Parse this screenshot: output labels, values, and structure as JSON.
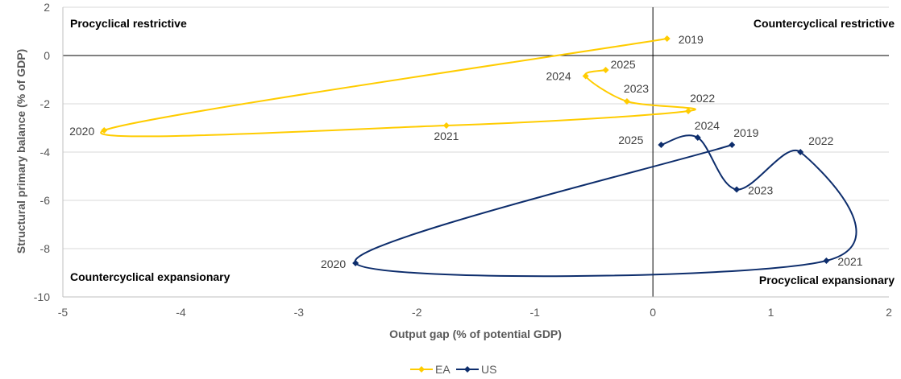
{
  "chart_data": {
    "type": "scatter",
    "title": "",
    "xlabel": "Output gap (% of potential GDP)",
    "ylabel": "Structural primary balance (% of GDP)",
    "xlim": [
      -5,
      2
    ],
    "ylim": [
      -10,
      2
    ],
    "x_ticks": [
      "-5",
      "-4",
      "-3",
      "-2",
      "-1",
      "0",
      "1",
      "2"
    ],
    "y_ticks": [
      "-10",
      "-8",
      "-6",
      "-4",
      "-2",
      "0",
      "2"
    ],
    "grid": true,
    "legend_position": "bottom",
    "quadrants": {
      "top_left": "Procyclical restrictive",
      "top_right": "Countercyclical restrictive",
      "bottom_left": "Countercyclical expansionary",
      "bottom_right": "Procyclical expansionary"
    },
    "series": [
      {
        "name": "EA",
        "color": "#FFCC00",
        "marker": "diamond",
        "points": [
          {
            "label": "2019",
            "x": 0.12,
            "y": 0.7
          },
          {
            "label": "2020",
            "x": -4.65,
            "y": -3.1
          },
          {
            "label": "2021",
            "x": -1.75,
            "y": -2.9
          },
          {
            "label": "2022",
            "x": 0.3,
            "y": -2.3
          },
          {
            "label": "2023",
            "x": -0.22,
            "y": -1.9
          },
          {
            "label": "2024",
            "x": -0.57,
            "y": -0.85
          },
          {
            "label": "2025",
            "x": -0.4,
            "y": -0.6
          }
        ]
      },
      {
        "name": "US",
        "color": "#0D2D6C",
        "marker": "diamond",
        "points": [
          {
            "label": "2019",
            "x": 0.67,
            "y": -3.7
          },
          {
            "label": "2020",
            "x": -2.52,
            "y": -8.6
          },
          {
            "label": "2021",
            "x": 1.47,
            "y": -8.5
          },
          {
            "label": "2022",
            "x": 1.25,
            "y": -4.0
          },
          {
            "label": "2023",
            "x": 0.71,
            "y": -5.55
          },
          {
            "label": "2024",
            "x": 0.38,
            "y": -3.4
          },
          {
            "label": "2025",
            "x": 0.07,
            "y": -3.7
          }
        ]
      }
    ]
  }
}
